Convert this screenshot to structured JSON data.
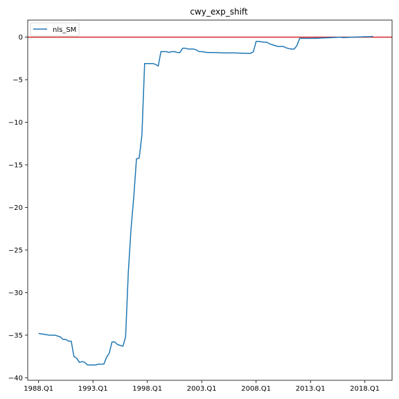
{
  "chart_data": {
    "type": "line",
    "title": "cwy_exp_shift",
    "xlabel": "",
    "ylabel": "",
    "x_ticks": [
      "1988.Q1",
      "1993.Q1",
      "1998.Q1",
      "2003.Q1",
      "2008.Q1",
      "2013.Q1",
      "2018.Q1"
    ],
    "y_ticks": [
      0,
      -5,
      -10,
      -15,
      -20,
      -25,
      -30,
      -35,
      -40
    ],
    "xlim": [
      1987.0,
      2020.5
    ],
    "ylim": [
      -40.3,
      2.0
    ],
    "grid": false,
    "legend_position": "top-left",
    "reference_line": {
      "y": 0,
      "color": "#d62728"
    },
    "series": [
      {
        "name": "nls_SM",
        "color": "#1f77b4",
        "points": [
          [
            1988.0,
            -34.8
          ],
          [
            1988.5,
            -34.9
          ],
          [
            1989.0,
            -35.0
          ],
          [
            1989.5,
            -35.0
          ],
          [
            1990.0,
            -35.2
          ],
          [
            1990.25,
            -35.5
          ],
          [
            1990.5,
            -35.5
          ],
          [
            1990.75,
            -35.7
          ],
          [
            1991.0,
            -35.7
          ],
          [
            1991.25,
            -37.5
          ],
          [
            1991.5,
            -37.7
          ],
          [
            1991.75,
            -38.2
          ],
          [
            1992.0,
            -38.1
          ],
          [
            1992.25,
            -38.2
          ],
          [
            1992.5,
            -38.5
          ],
          [
            1992.75,
            -38.5
          ],
          [
            1993.0,
            -38.5
          ],
          [
            1993.25,
            -38.5
          ],
          [
            1993.5,
            -38.4
          ],
          [
            1993.75,
            -38.4
          ],
          [
            1994.0,
            -38.4
          ],
          [
            1994.25,
            -37.6
          ],
          [
            1994.5,
            -37.1
          ],
          [
            1994.75,
            -35.8
          ],
          [
            1995.0,
            -35.8
          ],
          [
            1995.25,
            -36.1
          ],
          [
            1995.5,
            -36.2
          ],
          [
            1995.75,
            -36.3
          ],
          [
            1996.0,
            -35.2
          ],
          [
            1996.25,
            -27.6
          ],
          [
            1996.5,
            -22.5
          ],
          [
            1996.75,
            -18.8
          ],
          [
            1997.0,
            -14.3
          ],
          [
            1997.25,
            -14.2
          ],
          [
            1997.5,
            -11.5
          ],
          [
            1997.75,
            -3.1
          ],
          [
            1998.0,
            -3.1
          ],
          [
            1998.25,
            -3.1
          ],
          [
            1998.5,
            -3.1
          ],
          [
            1998.75,
            -3.2
          ],
          [
            1999.0,
            -3.4
          ],
          [
            1999.25,
            -1.7
          ],
          [
            1999.5,
            -1.7
          ],
          [
            1999.75,
            -1.7
          ],
          [
            2000.0,
            -1.8
          ],
          [
            2000.25,
            -1.7
          ],
          [
            2000.5,
            -1.7
          ],
          [
            2000.75,
            -1.8
          ],
          [
            2001.0,
            -1.8
          ],
          [
            2001.25,
            -1.3
          ],
          [
            2001.5,
            -1.3
          ],
          [
            2001.75,
            -1.4
          ],
          [
            2002.0,
            -1.4
          ],
          [
            2002.25,
            -1.4
          ],
          [
            2002.5,
            -1.5
          ],
          [
            2002.75,
            -1.7
          ],
          [
            2003.0,
            -1.7
          ],
          [
            2003.5,
            -1.8
          ],
          [
            2004.0,
            -1.8
          ],
          [
            2005.0,
            -1.85
          ],
          [
            2006.0,
            -1.85
          ],
          [
            2007.0,
            -1.9
          ],
          [
            2007.5,
            -1.9
          ],
          [
            2007.75,
            -1.7
          ],
          [
            2008.0,
            -0.5
          ],
          [
            2008.25,
            -0.5
          ],
          [
            2008.5,
            -0.55
          ],
          [
            2008.75,
            -0.6
          ],
          [
            2009.0,
            -0.6
          ],
          [
            2009.25,
            -0.8
          ],
          [
            2009.5,
            -0.9
          ],
          [
            2009.75,
            -1.0
          ],
          [
            2010.0,
            -1.1
          ],
          [
            2010.25,
            -1.1
          ],
          [
            2010.5,
            -1.1
          ],
          [
            2010.75,
            -1.25
          ],
          [
            2011.0,
            -1.35
          ],
          [
            2011.25,
            -1.4
          ],
          [
            2011.5,
            -1.4
          ],
          [
            2011.75,
            -1.0
          ],
          [
            2012.0,
            -0.15
          ],
          [
            2012.5,
            -0.15
          ],
          [
            2013.0,
            -0.15
          ],
          [
            2013.5,
            -0.15
          ],
          [
            2014.0,
            -0.1
          ],
          [
            2015.0,
            -0.05
          ],
          [
            2015.75,
            0.0
          ],
          [
            2016.0,
            -0.05
          ],
          [
            2017.0,
            0.0
          ],
          [
            2018.0,
            0.05
          ],
          [
            2018.5,
            0.05
          ],
          [
            2018.75,
            0.1
          ]
        ]
      }
    ]
  }
}
